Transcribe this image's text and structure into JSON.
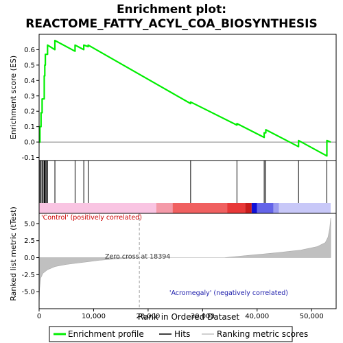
{
  "chart_data": {
    "type": "line",
    "title_line1": "Enrichment plot:",
    "title_line2": "REACTOME_FATTY_ACYL_COA_BIOSYNTHESIS",
    "xlabel": "Rank in Ordered Dataset",
    "ylabel_top": "Enrichment score (ES)",
    "ylabel_bottom": "Ranked list metric (tTest)",
    "xlim": [
      0,
      54500
    ],
    "es_ylim": [
      -0.12,
      0.7
    ],
    "metric_ylim": [
      -7.5,
      6.5
    ],
    "x_ticks": [
      0,
      10000,
      20000,
      30000,
      40000,
      50000
    ],
    "x_tick_labels": [
      "0",
      "10,000",
      "20,000",
      "30,000",
      "40,000",
      "50,000"
    ],
    "es_ticks": [
      -0.1,
      0.0,
      0.1,
      0.2,
      0.3,
      0.4,
      0.5,
      0.6
    ],
    "es_tick_labels": [
      "-0.1",
      "0.0",
      "0.1",
      "0.2",
      "0.3",
      "0.4",
      "0.5",
      "0.6"
    ],
    "metric_ticks": [
      -5.0,
      -2.5,
      0.0,
      2.5,
      5.0
    ],
    "metric_tick_labels": [
      "-5.0",
      "-2.5",
      "0.0",
      "2.5",
      "5.0"
    ],
    "hits": [
      150,
      350,
      550,
      750,
      950,
      1050,
      1150,
      1350,
      1550,
      2900,
      6600,
      8200,
      9000,
      27800,
      36300,
      41300,
      41600,
      47600,
      52800
    ],
    "es_profile": [
      [
        0,
        0.0
      ],
      [
        150,
        0.0
      ],
      [
        150,
        0.1
      ],
      [
        350,
        0.1
      ],
      [
        350,
        0.19
      ],
      [
        550,
        0.19
      ],
      [
        550,
        0.28
      ],
      [
        750,
        0.28
      ],
      [
        750,
        0.28
      ],
      [
        950,
        0.28
      ],
      [
        950,
        0.43
      ],
      [
        1050,
        0.43
      ],
      [
        1050,
        0.5
      ],
      [
        1150,
        0.5
      ],
      [
        1150,
        0.57
      ],
      [
        1350,
        0.57
      ],
      [
        1350,
        0.57
      ],
      [
        1550,
        0.57
      ],
      [
        1550,
        0.63
      ],
      [
        2900,
        0.6
      ],
      [
        2900,
        0.66
      ],
      [
        6600,
        0.59
      ],
      [
        6600,
        0.63
      ],
      [
        8200,
        0.6
      ],
      [
        8200,
        0.63
      ],
      [
        9000,
        0.62
      ],
      [
        9000,
        0.63
      ],
      [
        27800,
        0.25
      ],
      [
        27800,
        0.26
      ],
      [
        36300,
        0.11
      ],
      [
        36300,
        0.12
      ],
      [
        41300,
        0.03
      ],
      [
        41300,
        0.06
      ],
      [
        41600,
        0.06
      ],
      [
        41600,
        0.08
      ],
      [
        47600,
        -0.03
      ],
      [
        47600,
        0.01
      ],
      [
        52800,
        -0.09
      ],
      [
        52800,
        0.01
      ],
      [
        53500,
        0.0
      ]
    ],
    "metric_profile": [
      [
        0,
        -7.2
      ],
      [
        100,
        -4.5
      ],
      [
        300,
        -3.0
      ],
      [
        700,
        -2.3
      ],
      [
        1500,
        -1.8
      ],
      [
        3000,
        -1.3
      ],
      [
        5000,
        -1.0
      ],
      [
        8000,
        -0.7
      ],
      [
        11000,
        -0.4
      ],
      [
        14000,
        -0.2
      ],
      [
        16500,
        -0.08
      ],
      [
        18394,
        0.0
      ],
      [
        34000,
        0.0
      ],
      [
        36000,
        0.15
      ],
      [
        40000,
        0.45
      ],
      [
        44000,
        0.75
      ],
      [
        48000,
        1.1
      ],
      [
        51000,
        1.6
      ],
      [
        52500,
        2.2
      ],
      [
        53000,
        3.0
      ],
      [
        53300,
        4.2
      ],
      [
        53500,
        5.8
      ]
    ],
    "heatmap_bar": [
      {
        "from": 0,
        "to": 21500,
        "color": "#f9c4e2"
      },
      {
        "from": 21500,
        "to": 24500,
        "color": "#f49aa8"
      },
      {
        "from": 24500,
        "to": 34500,
        "color": "#f06060"
      },
      {
        "from": 34500,
        "to": 37800,
        "color": "#e83838"
      },
      {
        "from": 37800,
        "to": 39000,
        "color": "#c81c1c"
      },
      {
        "from": 39000,
        "to": 40000,
        "color": "#1010d8"
      },
      {
        "from": 40000,
        "to": 43000,
        "color": "#6464e8"
      },
      {
        "from": 43000,
        "to": 44000,
        "color": "#9c9cf0"
      },
      {
        "from": 44000,
        "to": 53500,
        "color": "#c8c8f8"
      }
    ],
    "zero_cross_x": 18394,
    "zero_cross_label": "Zero cross at 18394",
    "positive_label": "'Control' (positively correlated)",
    "negative_label": "'Acromegaly' (negatively correlated)",
    "legend": [
      {
        "label": "Enrichment profile",
        "color": "#00ee00"
      },
      {
        "label": "Hits",
        "color": "#000000"
      },
      {
        "label": "Ranking metric scores",
        "color": "#c0c0c0"
      }
    ],
    "colors": {
      "profile": "#00ee00",
      "metric_fill": "#c0c0c0",
      "positive": "#cc0000",
      "negative": "#1a1aaa"
    }
  }
}
